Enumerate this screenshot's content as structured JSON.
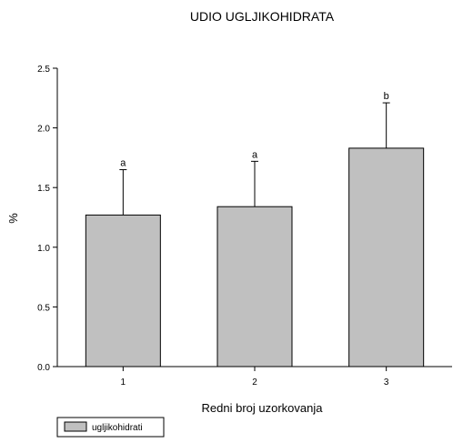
{
  "chart_data": {
    "type": "bar",
    "title": "UDIO UGLJIKOHIDRATA",
    "xlabel": "Redni broj uzorkovanja",
    "ylabel": "%",
    "categories": [
      "1",
      "2",
      "3"
    ],
    "series": [
      {
        "name": "ugljikohidrati",
        "values": [
          1.27,
          1.34,
          1.83
        ],
        "errors": [
          0.38,
          0.38,
          0.38
        ],
        "labels": [
          "a",
          "a",
          "b"
        ]
      }
    ],
    "ylim": [
      0,
      2.5
    ],
    "yticks": [
      "0.0",
      "0.5",
      "1.0",
      "1.5",
      "2.0",
      "2.5"
    ],
    "grid": false,
    "legend": "bottom-left",
    "colors": {
      "bar_fill": "#c0c0c0",
      "stroke": "#000000"
    }
  }
}
